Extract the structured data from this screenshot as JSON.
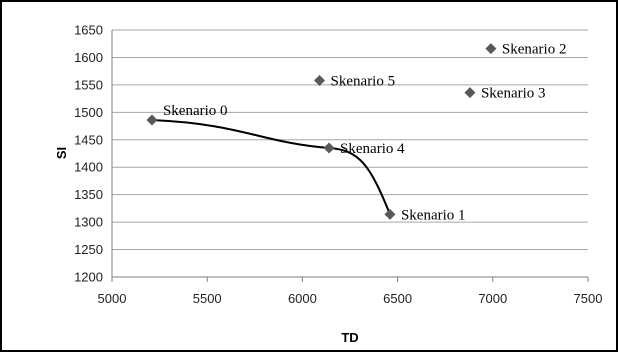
{
  "chart_data": {
    "type": "scatter",
    "title": "",
    "xlabel": "TD",
    "ylabel": "SI",
    "xlim": [
      5000,
      7500
    ],
    "ylim": [
      1200,
      1650
    ],
    "x_ticks": [
      5000,
      5500,
      6000,
      6500,
      7000,
      7500
    ],
    "y_ticks": [
      1200,
      1250,
      1300,
      1350,
      1400,
      1450,
      1500,
      1550,
      1600,
      1650
    ],
    "grid": "horizontal",
    "legend": "none",
    "marker": "diamond",
    "points": [
      {
        "label": "Skenario 0",
        "x": 5210,
        "y": 1486
      },
      {
        "label": "Skenario 1",
        "x": 6460,
        "y": 1314
      },
      {
        "label": "Skenario 2",
        "x": 6990,
        "y": 1616
      },
      {
        "label": "Skenario 3",
        "x": 6880,
        "y": 1536
      },
      {
        "label": "Skenario 4",
        "x": 6140,
        "y": 1435
      },
      {
        "label": "Skenario 5",
        "x": 6090,
        "y": 1558
      }
    ],
    "curve_through": [
      "Skenario 0",
      "Skenario 4",
      "Skenario 1"
    ]
  },
  "colors": {
    "marker": "#595959",
    "curve": "#000000",
    "grid": "#a6a6a6",
    "axis": "#808080"
  }
}
